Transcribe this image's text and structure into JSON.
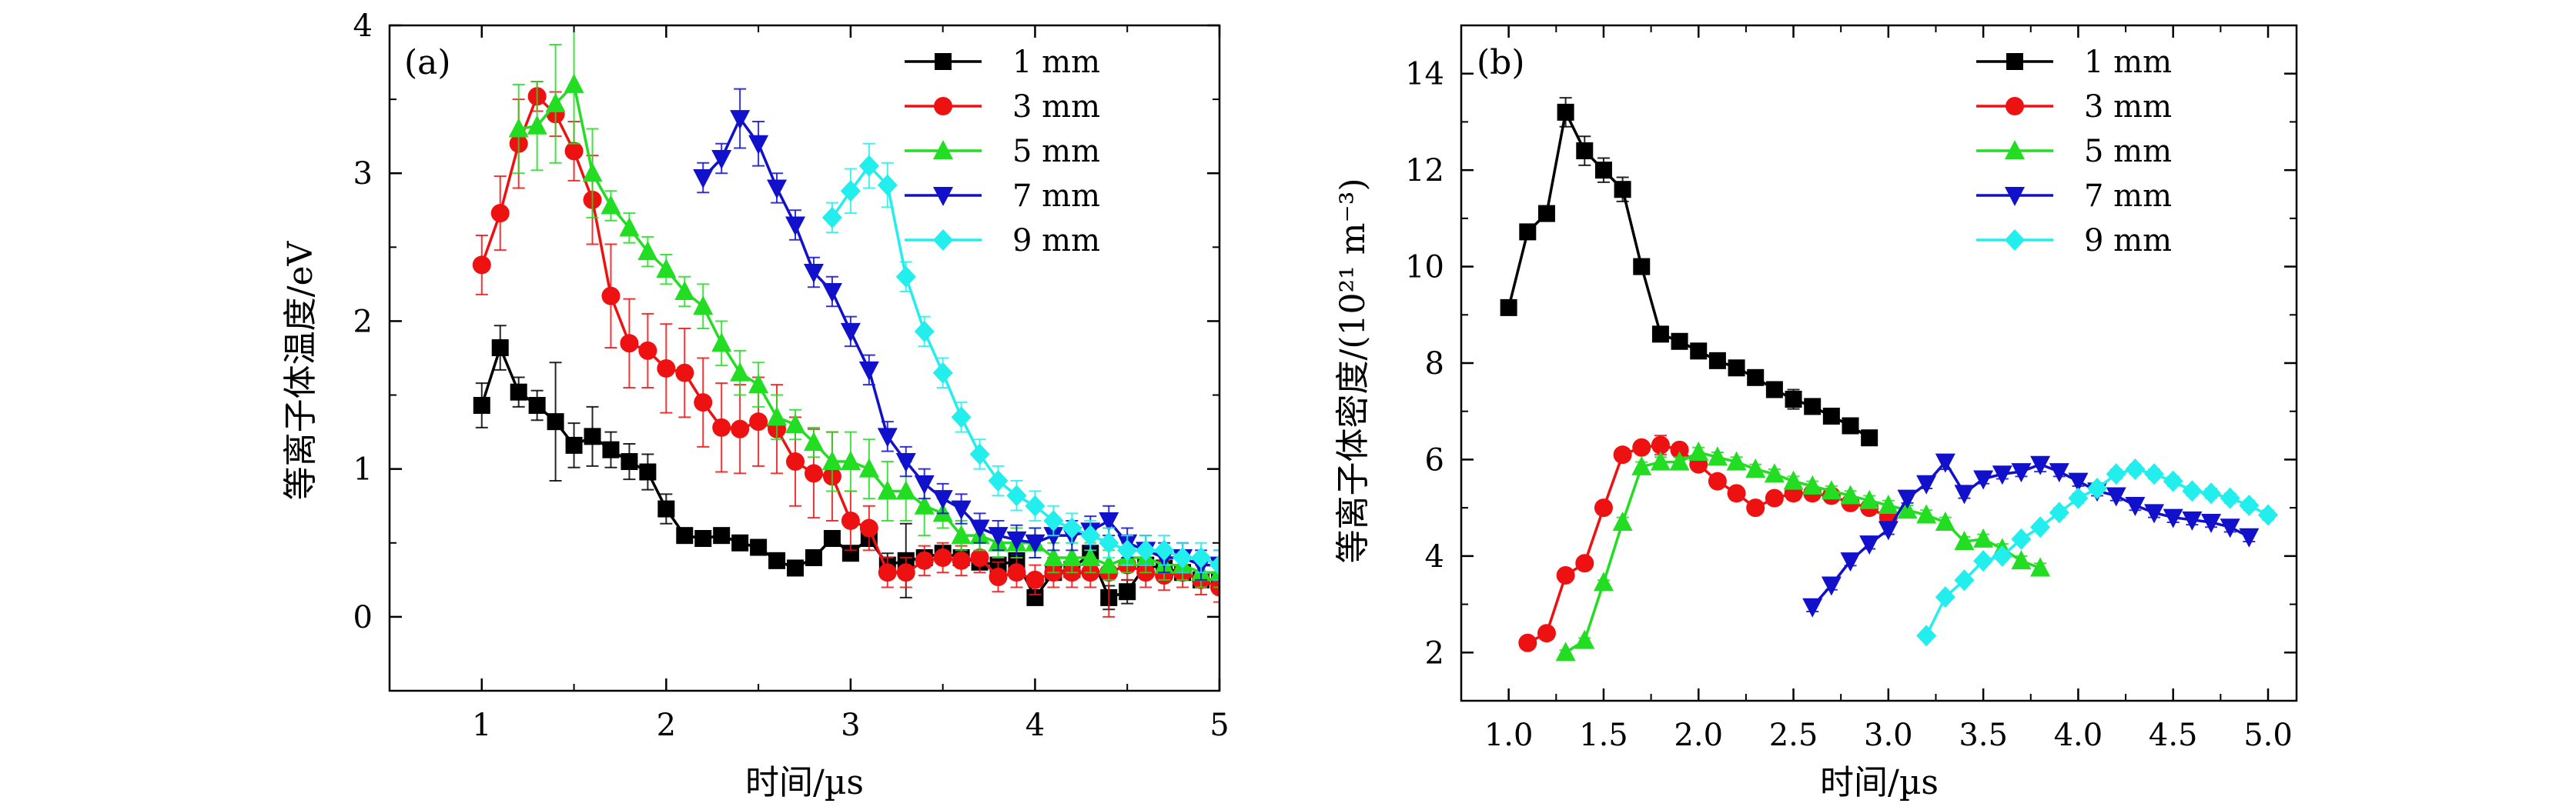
{
  "chart_data": [
    {
      "type": "line",
      "panel_label": "(a)",
      "xlabel": "时间/µs",
      "ylabel": "等离子体温度/eV",
      "xlim": [
        0.5,
        5
      ],
      "ylim": [
        -0.5,
        4
      ],
      "x_ticks": [
        1,
        2,
        3,
        4,
        5
      ],
      "x_tick_labels": [
        "1",
        "2",
        "3",
        "4",
        "5"
      ],
      "y_ticks": [
        0,
        1,
        2,
        3,
        4
      ],
      "y_tick_labels": [
        "0",
        "1",
        "2",
        "3",
        "4"
      ],
      "legend": "top-right",
      "series": [
        {
          "name": "1 mm",
          "color": "#000000",
          "marker": "square",
          "x": [
            1.0,
            1.1,
            1.2,
            1.3,
            1.4,
            1.5,
            1.6,
            1.7,
            1.8,
            1.9,
            2.0,
            2.1,
            2.2,
            2.3,
            2.4,
            2.5,
            2.6,
            2.7,
            2.8,
            2.9,
            3.0,
            3.1,
            3.2,
            3.3,
            3.4,
            3.5,
            3.6,
            3.7,
            3.8,
            3.9,
            4.0,
            4.1,
            4.2,
            4.3,
            4.4,
            4.5,
            4.6,
            4.7,
            4.8,
            4.9,
            5.0
          ],
          "y": [
            1.43,
            1.82,
            1.52,
            1.43,
            1.32,
            1.16,
            1.22,
            1.13,
            1.05,
            0.98,
            0.73,
            0.55,
            0.53,
            0.55,
            0.5,
            0.47,
            0.38,
            0.33,
            0.4,
            0.53,
            0.43,
            0.53,
            0.35,
            0.38,
            0.4,
            0.43,
            0.4,
            0.37,
            0.35,
            0.38,
            0.13,
            0.3,
            0.32,
            0.43,
            0.13,
            0.17,
            0.35,
            0.33,
            0.3,
            0.25,
            0.25
          ],
          "err": [
            0.15,
            0.15,
            0.1,
            0.1,
            0.4,
            0.15,
            0.2,
            0.12,
            0.12,
            0.12,
            0.1,
            0.05,
            0.05,
            0.05,
            0.05,
            0.05,
            0.03,
            0.03,
            0.05,
            0.05,
            0.05,
            0.05,
            0.08,
            0.25,
            0.05,
            0.05,
            0.05,
            0.05,
            0.05,
            0.05,
            0.05,
            0.05,
            0.05,
            0.05,
            0.08,
            0.08,
            0.05,
            0.05,
            0.05,
            0.05,
            0.05
          ]
        },
        {
          "name": "3 mm",
          "color": "#ee1111",
          "marker": "circle",
          "x": [
            1.0,
            1.1,
            1.2,
            1.3,
            1.4,
            1.5,
            1.6,
            1.7,
            1.8,
            1.9,
            2.0,
            2.1,
            2.2,
            2.3,
            2.4,
            2.5,
            2.6,
            2.7,
            2.8,
            2.9,
            3.0,
            3.1,
            3.2,
            3.3,
            3.4,
            3.5,
            3.6,
            3.7,
            3.8,
            3.9,
            4.0,
            4.1,
            4.2,
            4.3,
            4.4,
            4.5,
            4.6,
            4.7,
            4.8,
            4.9,
            5.0
          ],
          "y": [
            2.38,
            2.73,
            3.2,
            3.52,
            3.4,
            3.15,
            2.82,
            2.17,
            1.85,
            1.8,
            1.68,
            1.65,
            1.45,
            1.28,
            1.27,
            1.32,
            1.27,
            1.05,
            0.97,
            0.95,
            0.65,
            0.6,
            0.3,
            0.3,
            0.38,
            0.4,
            0.38,
            0.4,
            0.27,
            0.3,
            0.25,
            0.3,
            0.3,
            0.3,
            0.3,
            0.35,
            0.3,
            0.28,
            0.3,
            0.25,
            0.2
          ],
          "err": [
            0.2,
            0.25,
            0.3,
            0.1,
            0.15,
            0.2,
            0.3,
            0.35,
            0.3,
            0.25,
            0.3,
            0.3,
            0.3,
            0.3,
            0.3,
            0.3,
            0.3,
            0.3,
            0.3,
            0.3,
            0.2,
            0.15,
            0.1,
            0.1,
            0.1,
            0.1,
            0.1,
            0.1,
            0.1,
            0.1,
            0.1,
            0.1,
            0.1,
            0.1,
            0.3,
            0.1,
            0.1,
            0.1,
            0.1,
            0.1,
            0.1
          ]
        },
        {
          "name": "5 mm",
          "color": "#22dd22",
          "marker": "triangle-up",
          "x": [
            1.2,
            1.3,
            1.4,
            1.5,
            1.6,
            1.7,
            1.8,
            1.9,
            2.0,
            2.1,
            2.2,
            2.3,
            2.4,
            2.5,
            2.6,
            2.7,
            2.8,
            2.9,
            3.0,
            3.1,
            3.2,
            3.3,
            3.4,
            3.5,
            3.6,
            3.7,
            3.8,
            3.9,
            4.0,
            4.1,
            4.2,
            4.3,
            4.4,
            4.5,
            4.6,
            4.7,
            4.8,
            4.9,
            5.0
          ],
          "y": [
            3.3,
            3.32,
            3.47,
            3.6,
            3.0,
            2.78,
            2.63,
            2.47,
            2.35,
            2.2,
            2.1,
            1.85,
            1.65,
            1.57,
            1.35,
            1.3,
            1.18,
            1.05,
            1.05,
            1.0,
            0.85,
            0.85,
            0.75,
            0.7,
            0.55,
            0.55,
            0.5,
            0.5,
            0.5,
            0.4,
            0.4,
            0.4,
            0.35,
            0.4,
            0.4,
            0.35,
            0.35,
            0.3,
            0.3
          ],
          "err": [
            0.3,
            0.3,
            0.4,
            0.4,
            0.3,
            0.1,
            0.1,
            0.1,
            0.1,
            0.1,
            0.15,
            0.15,
            0.15,
            0.15,
            0.15,
            0.1,
            0.1,
            0.2,
            0.2,
            0.2,
            0.2,
            0.2,
            0.2,
            0.1,
            0.1,
            0.1,
            0.1,
            0.1,
            0.1,
            0.1,
            0.1,
            0.1,
            0.1,
            0.1,
            0.1,
            0.1,
            0.1,
            0.1,
            0.1
          ]
        },
        {
          "name": "7 mm",
          "color": "#1111cc",
          "marker": "triangle-down",
          "x": [
            2.2,
            2.3,
            2.4,
            2.5,
            2.6,
            2.7,
            2.8,
            2.9,
            3.0,
            3.1,
            3.2,
            3.3,
            3.4,
            3.5,
            3.6,
            3.7,
            3.8,
            3.9,
            4.0,
            4.1,
            4.2,
            4.3,
            4.4,
            4.5,
            4.6,
            4.7,
            4.8,
            4.9,
            5.0
          ],
          "y": [
            2.97,
            3.1,
            3.37,
            3.2,
            2.9,
            2.65,
            2.33,
            2.2,
            1.93,
            1.67,
            1.22,
            1.05,
            0.9,
            0.8,
            0.73,
            0.6,
            0.55,
            0.52,
            0.5,
            0.55,
            0.55,
            0.58,
            0.65,
            0.5,
            0.45,
            0.4,
            0.4,
            0.35,
            0.35
          ],
          "err": [
            0.1,
            0.1,
            0.2,
            0.15,
            0.1,
            0.1,
            0.1,
            0.1,
            0.1,
            0.1,
            0.1,
            0.1,
            0.1,
            0.1,
            0.1,
            0.1,
            0.1,
            0.1,
            0.1,
            0.1,
            0.1,
            0.1,
            0.1,
            0.1,
            0.1,
            0.1,
            0.1,
            0.1,
            0.1
          ]
        },
        {
          "name": "9 mm",
          "color": "#22eeee",
          "marker": "diamond",
          "x": [
            2.9,
            3.0,
            3.1,
            3.2,
            3.3,
            3.4,
            3.5,
            3.6,
            3.7,
            3.8,
            3.9,
            4.0,
            4.1,
            4.2,
            4.3,
            4.4,
            4.5,
            4.6,
            4.7,
            4.8,
            4.9,
            5.0
          ],
          "y": [
            2.7,
            2.88,
            3.05,
            2.92,
            2.3,
            1.93,
            1.65,
            1.35,
            1.1,
            0.92,
            0.82,
            0.75,
            0.65,
            0.6,
            0.55,
            0.5,
            0.45,
            0.45,
            0.45,
            0.4,
            0.4,
            0.35
          ],
          "err": [
            0.1,
            0.15,
            0.15,
            0.15,
            0.1,
            0.1,
            0.1,
            0.1,
            0.1,
            0.1,
            0.1,
            0.1,
            0.1,
            0.1,
            0.1,
            0.1,
            0.1,
            0.1,
            0.1,
            0.1,
            0.1,
            0.1
          ]
        }
      ]
    },
    {
      "type": "line",
      "panel_label": "(b)",
      "xlabel": "时间/µs",
      "ylabel": "等离子体密度/(10²¹ m⁻³)",
      "xlim": [
        0.75,
        5.15
      ],
      "ylim": [
        1,
        15
      ],
      "x_ticks": [
        1.0,
        1.5,
        2.0,
        2.5,
        3.0,
        3.5,
        4.0,
        4.5,
        5.0
      ],
      "x_tick_labels": [
        "1.0",
        "1.5",
        "2.0",
        "2.5",
        "3.0",
        "3.5",
        "4.0",
        "4.5",
        "5.0"
      ],
      "y_ticks": [
        2,
        4,
        6,
        8,
        10,
        12,
        14
      ],
      "y_tick_labels": [
        "2",
        "4",
        "6",
        "8",
        "10",
        "12",
        "14"
      ],
      "legend": "top-right",
      "series": [
        {
          "name": "1 mm",
          "color": "#000000",
          "marker": "square",
          "x": [
            1.0,
            1.1,
            1.2,
            1.3,
            1.4,
            1.5,
            1.6,
            1.7,
            1.8,
            1.9,
            2.0,
            2.1,
            2.2,
            2.3,
            2.4,
            2.5,
            2.6,
            2.7,
            2.8,
            2.9
          ],
          "y": [
            9.15,
            10.72,
            11.1,
            13.2,
            12.4,
            12.0,
            11.6,
            10.0,
            8.6,
            8.45,
            8.25,
            8.05,
            7.9,
            7.7,
            7.45,
            7.25,
            7.1,
            6.9,
            6.7,
            6.45
          ],
          "err": [
            0.1,
            0.1,
            0.15,
            0.3,
            0.3,
            0.25,
            0.25,
            0.1,
            0.1,
            0.1,
            0.1,
            0.1,
            0.1,
            0.1,
            0.15,
            0.2,
            0.15,
            0.1,
            0.1,
            0.1
          ]
        },
        {
          "name": "3 mm",
          "color": "#ee1111",
          "marker": "circle",
          "x": [
            1.1,
            1.2,
            1.3,
            1.4,
            1.5,
            1.6,
            1.7,
            1.8,
            1.9,
            2.0,
            2.1,
            2.2,
            2.3,
            2.4,
            2.5,
            2.6,
            2.7,
            2.8,
            2.9,
            3.0
          ],
          "y": [
            2.2,
            2.4,
            3.6,
            3.85,
            5.0,
            6.1,
            6.25,
            6.3,
            6.2,
            5.9,
            5.55,
            5.3,
            5.0,
            5.2,
            5.3,
            5.3,
            5.25,
            5.1,
            5.0,
            4.8
          ],
          "err": [
            0.05,
            0.05,
            0.05,
            0.05,
            0.1,
            0.1,
            0.1,
            0.2,
            0.1,
            0.1,
            0.1,
            0.1,
            0.1,
            0.1,
            0.1,
            0.1,
            0.1,
            0.1,
            0.1,
            0.1
          ]
        },
        {
          "name": "5 mm",
          "color": "#22dd22",
          "marker": "triangle-up",
          "x": [
            1.3,
            1.4,
            1.5,
            1.6,
            1.7,
            1.8,
            1.9,
            2.0,
            2.1,
            2.2,
            2.3,
            2.4,
            2.5,
            2.6,
            2.7,
            2.8,
            2.9,
            3.0,
            3.1,
            3.2,
            3.3,
            3.4,
            3.5,
            3.6,
            3.7,
            3.8
          ],
          "y": [
            2.0,
            2.25,
            3.45,
            4.7,
            5.85,
            5.95,
            5.95,
            6.15,
            6.05,
            5.95,
            5.8,
            5.7,
            5.55,
            5.45,
            5.35,
            5.25,
            5.15,
            5.05,
            4.95,
            4.85,
            4.7,
            4.3,
            4.35,
            4.15,
            3.9,
            3.75
          ],
          "err": [
            0.05,
            0.05,
            0.05,
            0.1,
            0.1,
            0.1,
            0.1,
            0.1,
            0.1,
            0.1,
            0.1,
            0.1,
            0.1,
            0.1,
            0.1,
            0.1,
            0.1,
            0.1,
            0.1,
            0.1,
            0.1,
            0.1,
            0.1,
            0.1,
            0.1,
            0.1
          ]
        },
        {
          "name": "7 mm",
          "color": "#1111cc",
          "marker": "triangle-down",
          "x": [
            2.6,
            2.7,
            2.8,
            2.9,
            3.0,
            3.1,
            3.2,
            3.3,
            3.4,
            3.5,
            3.6,
            3.7,
            3.8,
            3.9,
            4.0,
            4.1,
            4.2,
            4.3,
            4.4,
            4.5,
            4.6,
            4.7,
            4.8,
            4.9
          ],
          "y": [
            2.95,
            3.4,
            3.9,
            4.25,
            4.55,
            5.2,
            5.5,
            5.95,
            5.3,
            5.6,
            5.7,
            5.75,
            5.9,
            5.75,
            5.55,
            5.35,
            5.25,
            5.05,
            4.9,
            4.8,
            4.75,
            4.7,
            4.6,
            4.4
          ],
          "err": [
            0.1,
            0.1,
            0.1,
            0.1,
            0.1,
            0.1,
            0.1,
            0.15,
            0.1,
            0.1,
            0.1,
            0.1,
            0.15,
            0.1,
            0.1,
            0.1,
            0.1,
            0.1,
            0.1,
            0.1,
            0.1,
            0.1,
            0.1,
            0.1
          ]
        },
        {
          "name": "9 mm",
          "color": "#22eeee",
          "marker": "diamond",
          "x": [
            3.2,
            3.3,
            3.4,
            3.5,
            3.6,
            3.7,
            3.8,
            3.9,
            4.0,
            4.1,
            4.2,
            4.3,
            4.4,
            4.5,
            4.6,
            4.7,
            4.8,
            4.9,
            5.0
          ],
          "y": [
            2.35,
            3.15,
            3.5,
            3.9,
            4.0,
            4.35,
            4.6,
            4.9,
            5.2,
            5.4,
            5.7,
            5.8,
            5.7,
            5.55,
            5.35,
            5.3,
            5.2,
            5.05,
            4.85
          ],
          "err": [
            0.05,
            0.05,
            0.05,
            0.05,
            0.05,
            0.05,
            0.05,
            0.1,
            0.1,
            0.1,
            0.1,
            0.1,
            0.1,
            0.1,
            0.1,
            0.1,
            0.1,
            0.1,
            0.1
          ]
        }
      ]
    }
  ]
}
